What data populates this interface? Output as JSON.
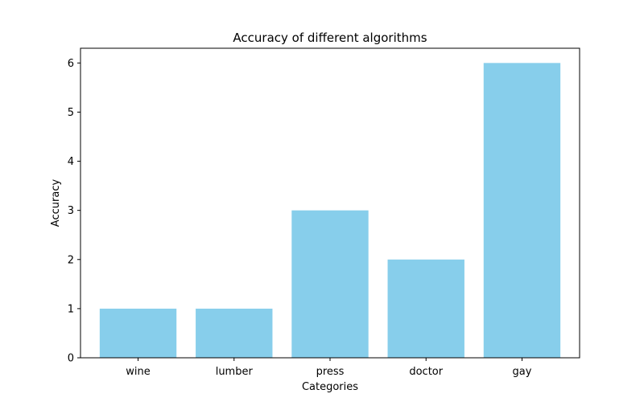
{
  "chart_data": {
    "type": "bar",
    "title": "Accuracy of different algorithms",
    "xlabel": "Categories",
    "ylabel": "Accuracy",
    "categories": [
      "wine",
      "lumber",
      "press",
      "doctor",
      "gay"
    ],
    "values": [
      1,
      1,
      3,
      2,
      6
    ],
    "ylim": [
      0,
      6.3
    ],
    "yticks": [
      0,
      1,
      2,
      3,
      4,
      5,
      6
    ],
    "bar_color": "#87ceeb",
    "grid": false,
    "legend": "none"
  }
}
